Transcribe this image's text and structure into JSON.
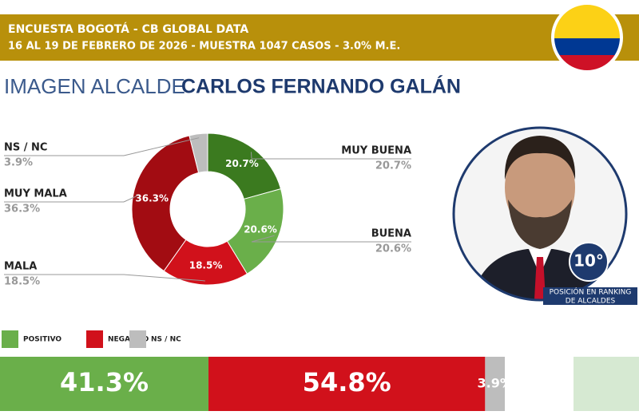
{
  "header": {
    "title": "ENCUESTA BOGOTÁ - CB GLOBAL DATA",
    "subtitle": "16 AL 19 DE FEBRERO DE 2026 - MUESTRA 1047 CASOS - 3.0% M.E."
  },
  "heading": {
    "prefix": "IMAGEN ALCALDE",
    "name": "CARLOS FERNANDO GALÁN"
  },
  "ranking": {
    "position": "10°",
    "caption_1": "POSICIÓN EN RANKING",
    "caption_2": "DE ALCALDES"
  },
  "chart_data": [
    {
      "type": "pie",
      "donut": true,
      "categories": [
        "MUY BUENA",
        "BUENA",
        "MALA",
        "MUY MALA",
        "NS / NC"
      ],
      "values": [
        20.7,
        20.6,
        18.5,
        36.3,
        3.9
      ],
      "value_labels": [
        "20.7%",
        "20.6%",
        "18.5%",
        "36.3%",
        "3.9%"
      ],
      "colors": [
        "#3b7a1f",
        "#6aaf4a",
        "#d1111b",
        "#a20c12",
        "#bdbdbd"
      ]
    },
    {
      "type": "stacked_bar",
      "series": [
        {
          "name": "POSITIVO",
          "color": "#6aaf4a",
          "values": [
            41.3
          ],
          "value_labels": [
            "41.3%"
          ]
        },
        {
          "name": "NEGATIVO",
          "color": "#d1111b",
          "values": [
            54.8
          ],
          "value_labels": [
            "54.8%"
          ]
        },
        {
          "name": "NS / NC",
          "color": "#bdbdbd",
          "values": [
            3.9
          ],
          "value_labels": [
            "3.9%"
          ]
        }
      ]
    }
  ]
}
